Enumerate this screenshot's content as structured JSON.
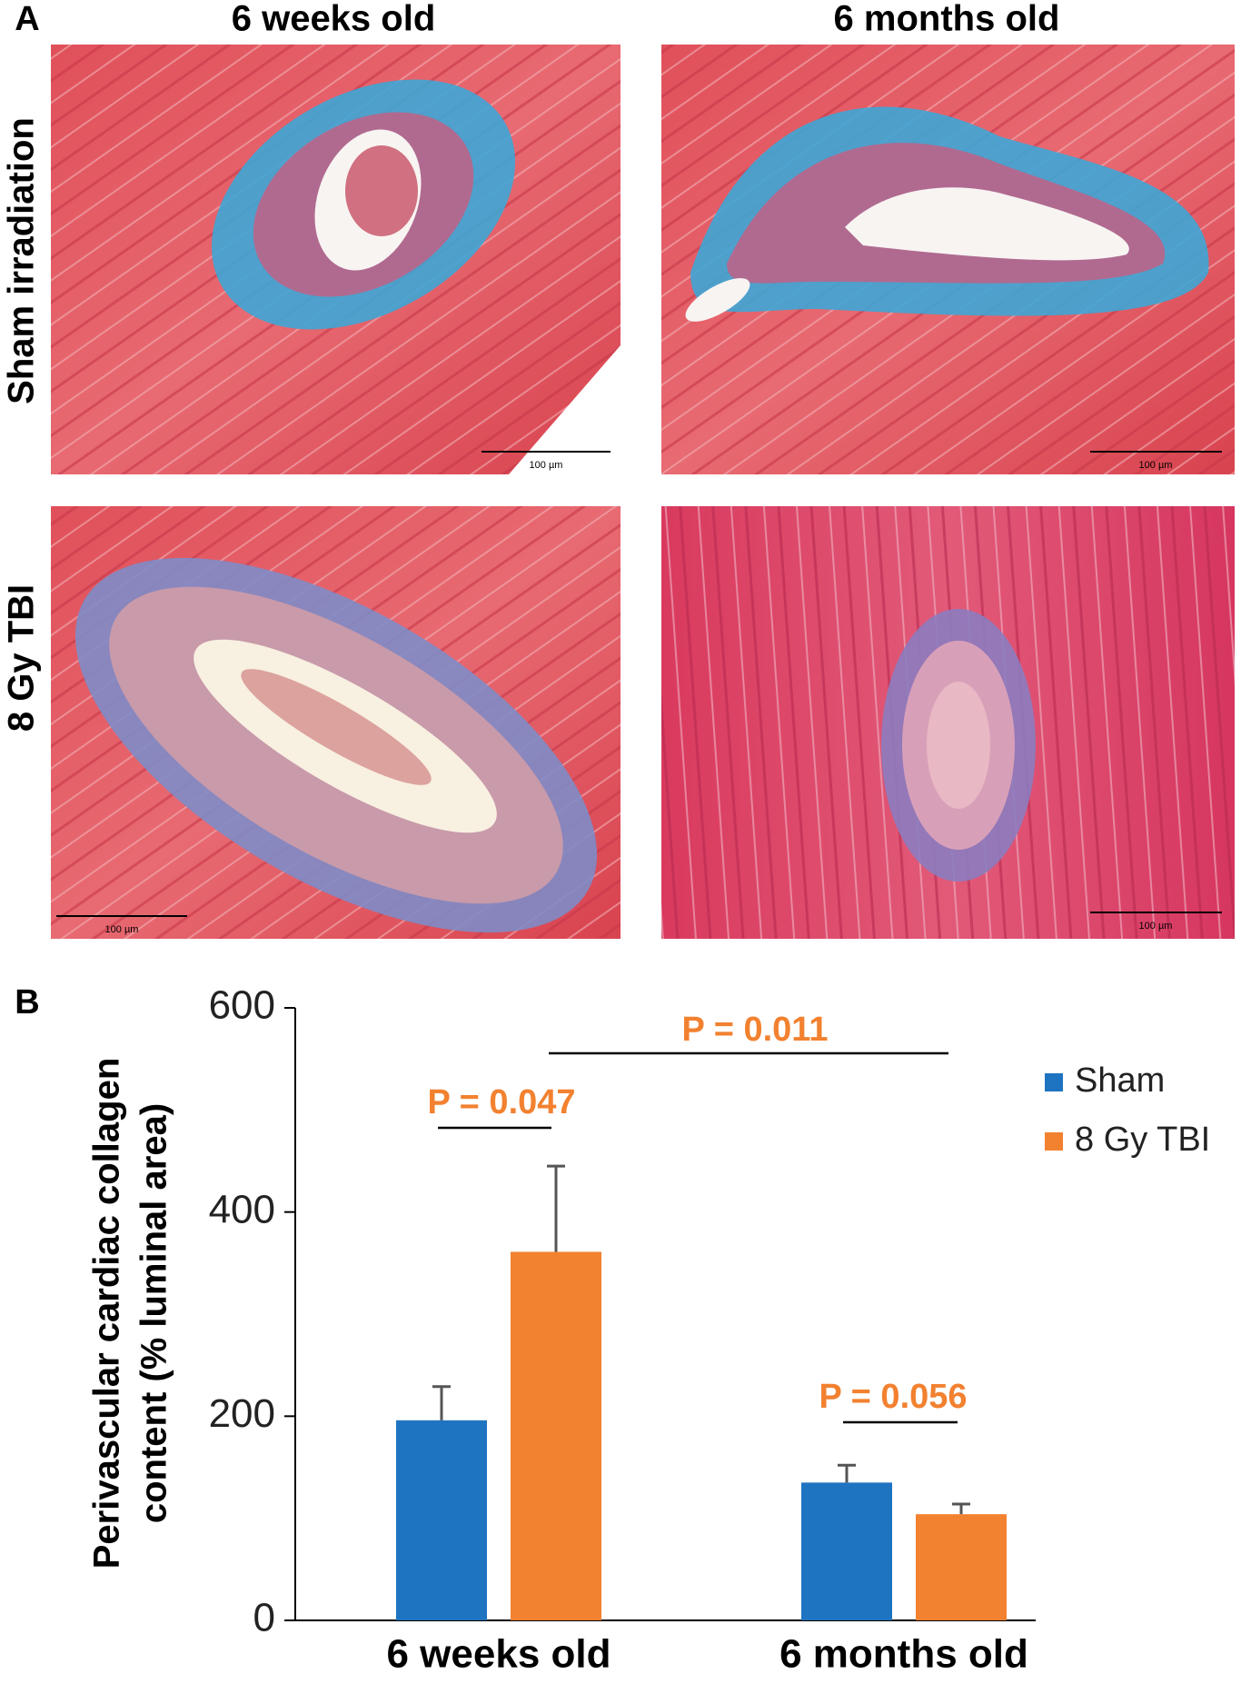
{
  "panel_a": {
    "label": "A",
    "columns": [
      "6 weeks old",
      "6 months old"
    ],
    "rows": [
      "Sham irradiation",
      "8 Gy TBI"
    ],
    "scale_bars": [
      "100 µm",
      "100 µm",
      "100 µm",
      "100 µm"
    ]
  },
  "chart_data": {
    "type": "bar",
    "panel_label": "B",
    "y_label": [
      "Perivascular cardiac collagen",
      "content (% luminal area)"
    ],
    "categories": [
      "6 weeks old",
      "6 months old"
    ],
    "series": [
      {
        "name": "Sham",
        "color": "#1f74c1",
        "values": [
          196,
          135
        ],
        "errors": [
          33,
          17
        ]
      },
      {
        "name": "8 Gy TBI",
        "color": "#f28130",
        "values": [
          361,
          104
        ],
        "errors": [
          84,
          10
        ]
      }
    ],
    "ylim": [
      0,
      600
    ],
    "yticks": [
      0,
      200,
      400,
      600
    ],
    "annotations": [
      "P = 0.047",
      "P = 0.011",
      "P = 0.056"
    ],
    "annotation_color": "#f28130"
  }
}
